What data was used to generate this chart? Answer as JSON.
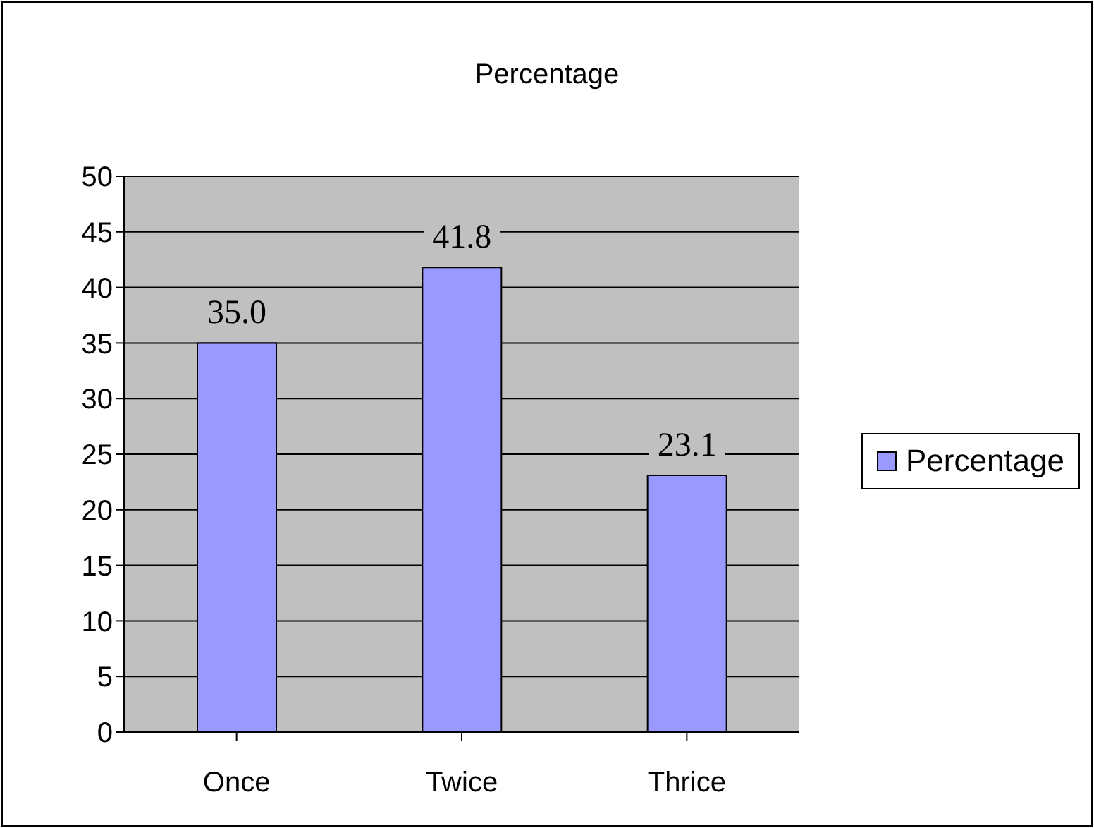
{
  "chart_data": {
    "type": "bar",
    "title": "Percentage",
    "categories": [
      "Once",
      "Twice",
      "Thrice"
    ],
    "series": [
      {
        "name": "Percentage",
        "color": "#9999ff",
        "values": [
          35.0,
          41.8,
          23.1
        ],
        "value_labels": [
          "35.0",
          "41.8",
          "23.1"
        ]
      }
    ],
    "ylim": [
      0,
      50
    ],
    "yticks": [
      0,
      5,
      10,
      15,
      20,
      25,
      30,
      35,
      40,
      45,
      50
    ],
    "grid": "y",
    "legend": "right"
  }
}
